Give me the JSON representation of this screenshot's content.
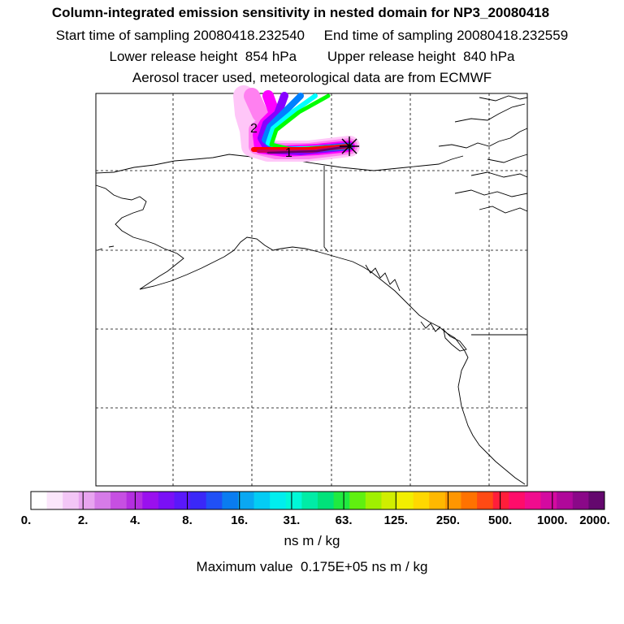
{
  "header": {
    "title": "Column-integrated emission sensitivity in nested domain for NP3_20080418",
    "line1": "Start time of sampling 20080418.232540     End time of sampling 20080418.232559",
    "line2": "Lower release height  854 hPa        Upper release height  840 hPa",
    "line3": "Aerosol tracer used, meteorological data are from ECMWF"
  },
  "map": {
    "region": "Alaska and western North America",
    "gridlines": "dashed",
    "receptor_marker": "asterisk",
    "day_labels": [
      "1",
      "2"
    ],
    "plume_colors": [
      "#ff00ff",
      "#8800ff",
      "#0080ff",
      "#00ffff",
      "#00ff00",
      "#ffff00",
      "#ff8000",
      "#ff0000",
      "#cc0066",
      "#660066"
    ]
  },
  "colorbar": {
    "ticks": [
      "0.",
      "2.",
      "4.",
      "8.",
      "16.",
      "31.",
      "63.",
      "125.",
      "250.",
      "500.",
      "1000.",
      "2000."
    ],
    "colors": [
      "#ffffff",
      "#fbe6fb",
      "#f3c6f6",
      "#e8a4f0",
      "#d67be8",
      "#c64fe2",
      "#b42ee0",
      "#9a10ee",
      "#7a10f6",
      "#5a18fa",
      "#3a28f8",
      "#2050f6",
      "#0a7cf0",
      "#0aa8f2",
      "#04ccf4",
      "#00eeee",
      "#00f8d8",
      "#00eca6",
      "#00e27a",
      "#20ea40",
      "#60f010",
      "#a0f000",
      "#d0ee00",
      "#f2ee00",
      "#ffd800",
      "#ffb800",
      "#ff9600",
      "#ff7200",
      "#ff4a14",
      "#ff1e3a",
      "#ff0c6a",
      "#f00c8e",
      "#d40aa0",
      "#b0089a",
      "#8a0888",
      "#64086e"
    ],
    "unit": "ns m / kg"
  },
  "footer": {
    "max_value": "Maximum value  0.175E+05 ns m / kg"
  }
}
